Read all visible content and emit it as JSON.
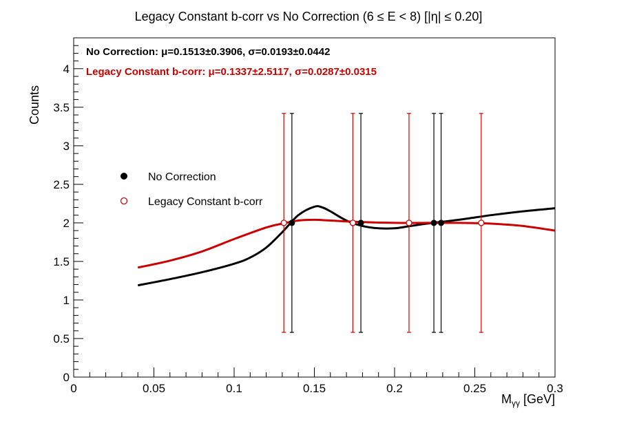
{
  "chart_data": {
    "type": "scatter",
    "title": "Legacy Constant b-corr vs No Correction   (6 ≤ E < 8)   [|η| ≤ 0.20]",
    "xlabel_main": "M",
    "xlabel_sub": "γγ",
    "xlabel_unit": " [GeV]",
    "ylabel": "Counts",
    "xlim": [
      0,
      0.3
    ],
    "ylim": [
      0,
      4.4
    ],
    "x_ticks": [
      0,
      0.05,
      0.1,
      0.15,
      0.2,
      0.25,
      0.3
    ],
    "x_tick_labels": [
      "0",
      "0.05",
      "0.1",
      "0.15",
      "0.2",
      "0.25",
      "0.3"
    ],
    "y_ticks": [
      0,
      0.5,
      1,
      1.5,
      2,
      2.5,
      3,
      3.5,
      4
    ],
    "y_tick_labels": [
      "0",
      "0.5",
      "1",
      "1.5",
      "2",
      "2.5",
      "3",
      "3.5",
      "4"
    ],
    "fit_text": [
      {
        "series": "No Correction",
        "text": "No Correction: μ=0.1513±0.3906, σ=0.0193±0.0442",
        "color": "#000000"
      },
      {
        "series": "Legacy Constant b-corr",
        "text": "Legacy Constant b-corr: μ=0.1337±2.5117, σ=0.0287±0.0315",
        "color": "#cc0000"
      }
    ],
    "legend": {
      "placement": "left"
    },
    "series": [
      {
        "name": "No Correction",
        "color": "#000000",
        "marker": "filled-circle",
        "points": [
          {
            "x": 0.136,
            "y": 2,
            "err_lo": 1.42,
            "err_hi": 1.42
          },
          {
            "x": 0.179,
            "y": 2,
            "err_lo": 1.42,
            "err_hi": 1.42
          },
          {
            "x": 0.2245,
            "y": 2,
            "err_lo": 1.42,
            "err_hi": 1.42
          },
          {
            "x": 0.229,
            "y": 2,
            "err_lo": 1.42,
            "err_hi": 1.42
          }
        ],
        "fit_curve": [
          [
            0.04,
            1.19
          ],
          [
            0.06,
            1.27
          ],
          [
            0.08,
            1.36
          ],
          [
            0.1,
            1.47
          ],
          [
            0.11,
            1.55
          ],
          [
            0.12,
            1.68
          ],
          [
            0.13,
            1.88
          ],
          [
            0.14,
            2.1
          ],
          [
            0.15,
            2.21
          ],
          [
            0.155,
            2.2
          ],
          [
            0.16,
            2.15
          ],
          [
            0.17,
            2.03
          ],
          [
            0.18,
            1.96
          ],
          [
            0.19,
            1.93
          ],
          [
            0.2,
            1.93
          ],
          [
            0.21,
            1.96
          ],
          [
            0.22,
            1.99
          ],
          [
            0.24,
            2.04
          ],
          [
            0.26,
            2.1
          ],
          [
            0.28,
            2.15
          ],
          [
            0.3,
            2.19
          ]
        ]
      },
      {
        "name": "Legacy Constant b-corr",
        "color": "#cc0000",
        "marker": "open-circle",
        "points": [
          {
            "x": 0.131,
            "y": 2,
            "err_lo": 1.42,
            "err_hi": 1.42
          },
          {
            "x": 0.174,
            "y": 2,
            "err_lo": 1.42,
            "err_hi": 1.42
          },
          {
            "x": 0.209,
            "y": 2,
            "err_lo": 1.42,
            "err_hi": 1.42
          },
          {
            "x": 0.254,
            "y": 2,
            "err_lo": 1.42,
            "err_hi": 1.42
          }
        ],
        "fit_curve": [
          [
            0.04,
            1.42
          ],
          [
            0.06,
            1.51
          ],
          [
            0.08,
            1.63
          ],
          [
            0.1,
            1.79
          ],
          [
            0.12,
            1.94
          ],
          [
            0.13,
            1.99
          ],
          [
            0.14,
            2.03
          ],
          [
            0.15,
            2.04
          ],
          [
            0.16,
            2.03
          ],
          [
            0.18,
            2.01
          ],
          [
            0.2,
            2.0
          ],
          [
            0.22,
            2.0
          ],
          [
            0.24,
            2.0
          ],
          [
            0.26,
            1.99
          ],
          [
            0.28,
            1.96
          ],
          [
            0.3,
            1.9
          ]
        ]
      }
    ]
  }
}
